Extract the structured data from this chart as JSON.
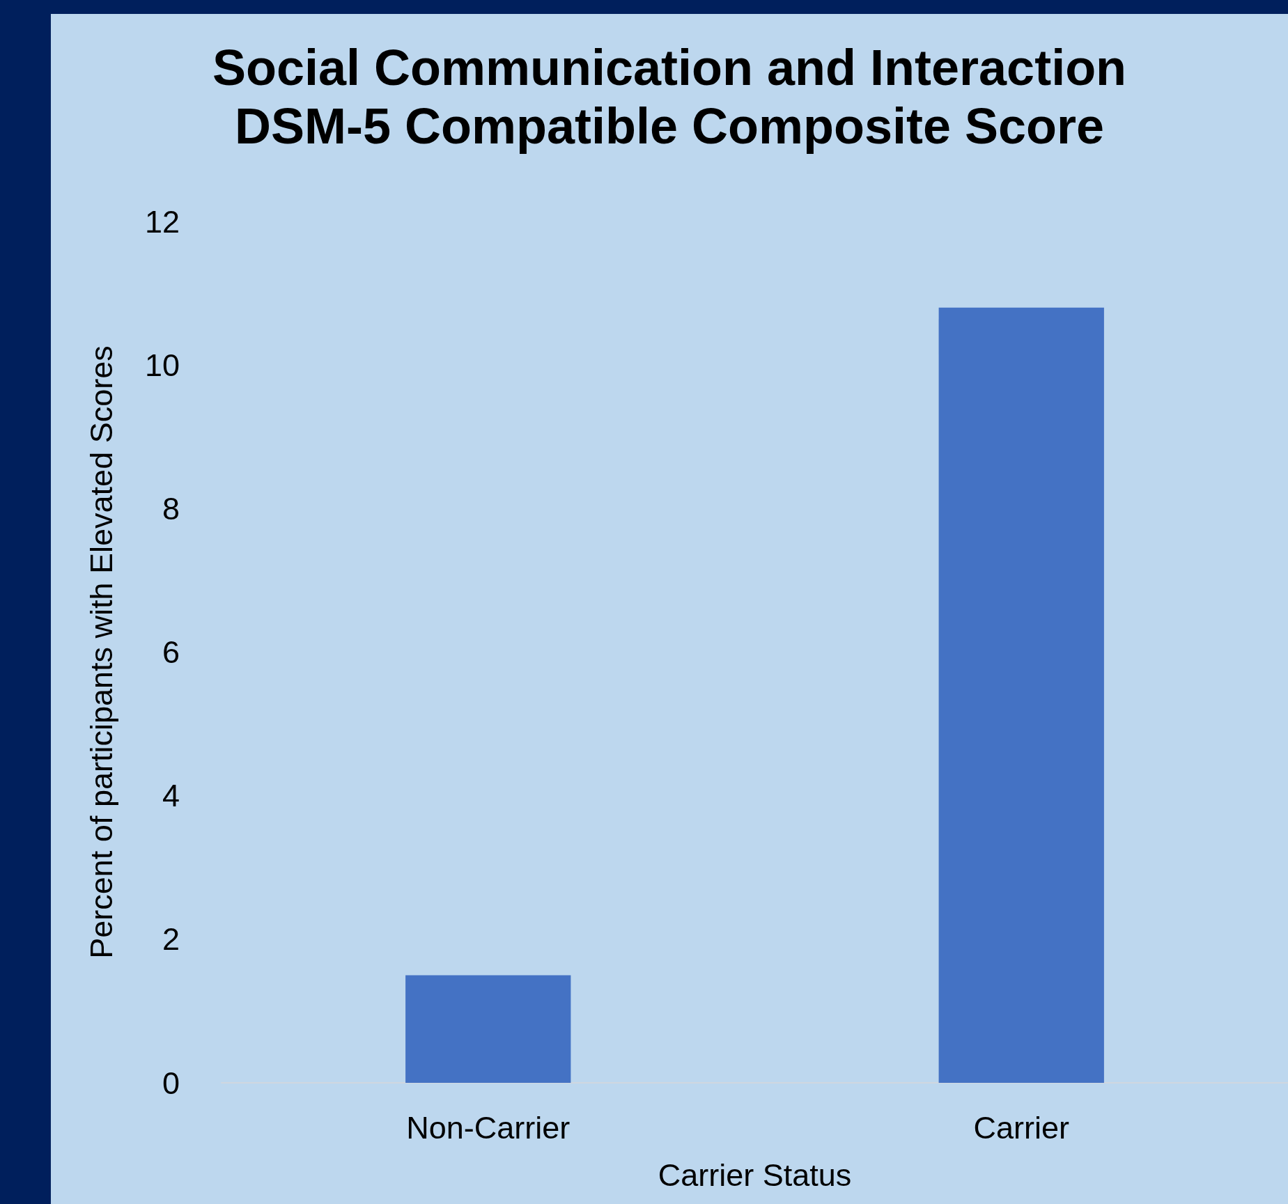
{
  "chart_data": {
    "type": "bar",
    "title": "Social Communication and Interaction\nDSM-5 Compatible Composite Score",
    "xlabel": "Carrier Status",
    "ylabel": "Percent of participants with Elevated Scores",
    "categories": [
      "Non-Carrier",
      "Carrier"
    ],
    "values": [
      1.5,
      10.8
    ],
    "color": "#4472c4",
    "ylim": [
      0,
      12
    ],
    "yticks": [
      0,
      2,
      4,
      6,
      8,
      10,
      12
    ],
    "grid": false
  }
}
